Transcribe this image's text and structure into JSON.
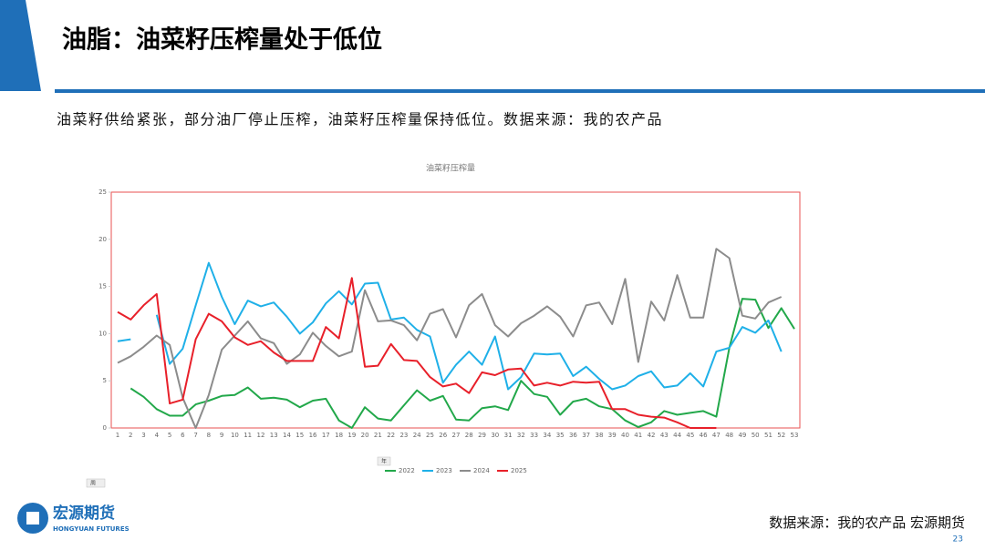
{
  "header": {
    "title": "油脂：油菜籽压榨量处于低位",
    "subtitle": "油菜籽供给紧张，部分油厂停止压榨，油菜籽压榨量保持低位。数据来源：我的农产品"
  },
  "chart_data": {
    "type": "line",
    "title": "油菜籽压榨量",
    "categories": [
      "1",
      "2",
      "3",
      "4",
      "5",
      "6",
      "7",
      "8",
      "9",
      "10",
      "11",
      "12",
      "13",
      "14",
      "15",
      "16",
      "17",
      "18",
      "19",
      "20",
      "21",
      "22",
      "23",
      "24",
      "25",
      "26",
      "27",
      "28",
      "29",
      "30",
      "31",
      "32",
      "33",
      "34",
      "35",
      "36",
      "37",
      "38",
      "39",
      "40",
      "41",
      "42",
      "43",
      "44",
      "45",
      "46",
      "47",
      "48",
      "49",
      "50",
      "51",
      "52",
      "53"
    ],
    "ylim": [
      0,
      25
    ],
    "yticks": [
      0,
      5,
      10,
      15,
      20,
      25
    ],
    "legend_filter": "年",
    "x_filter": "周",
    "series": [
      {
        "name": "2022",
        "color": "#22a84a",
        "values": [
          null,
          4.2,
          3.3,
          2.0,
          1.3,
          1.3,
          2.5,
          2.9,
          3.4,
          3.5,
          4.3,
          3.1,
          3.2,
          3.0,
          2.2,
          2.9,
          3.1,
          0.8,
          0.0,
          2.2,
          1.0,
          0.8,
          2.4,
          4.0,
          2.9,
          3.4,
          0.9,
          0.8,
          2.1,
          2.3,
          1.9,
          5.0,
          3.6,
          3.3,
          1.4,
          2.8,
          3.1,
          2.3,
          2.0,
          0.8,
          0.1,
          0.6,
          1.8,
          1.4,
          1.6,
          1.8,
          1.2,
          8.5,
          13.7,
          13.6,
          10.6,
          12.7,
          10.5
        ]
      },
      {
        "name": "2023",
        "color": "#1fb0e8",
        "values": [
          9.2,
          9.4,
          null,
          12.0,
          6.8,
          8.4,
          13.0,
          17.5,
          13.9,
          11.0,
          13.5,
          12.9,
          13.3,
          11.8,
          10.0,
          11.2,
          13.2,
          14.5,
          13.1,
          15.3,
          15.4,
          11.5,
          11.7,
          10.4,
          9.7,
          4.8,
          6.7,
          8.1,
          6.7,
          9.7,
          4.1,
          5.4,
          7.9,
          7.8,
          7.9,
          5.5,
          6.5,
          5.2,
          4.1,
          4.5,
          5.5,
          6.0,
          4.3,
          4.5,
          5.8,
          4.4,
          8.1,
          8.5,
          10.7,
          10.1,
          11.4,
          8.1,
          null
        ]
      },
      {
        "name": "2024",
        "color": "#8c8c8c",
        "values": [
          6.9,
          7.6,
          8.6,
          9.8,
          8.8,
          3.2,
          0.0,
          3.5,
          8.3,
          9.8,
          11.3,
          9.5,
          9.0,
          6.8,
          7.8,
          10.1,
          8.7,
          7.6,
          8.1,
          14.6,
          11.3,
          11.4,
          10.9,
          9.3,
          12.1,
          12.6,
          9.6,
          13.0,
          14.2,
          10.9,
          9.7,
          11.1,
          11.9,
          12.9,
          11.8,
          9.7,
          13.0,
          13.3,
          11.0,
          15.8,
          7.0,
          13.4,
          11.4,
          16.2,
          11.7,
          11.7,
          19.0,
          18.0,
          11.9,
          11.6,
          13.3,
          13.9,
          null
        ]
      },
      {
        "name": "2025",
        "color": "#e8202a",
        "values": [
          12.3,
          11.5,
          13.0,
          14.2,
          2.6,
          3.0,
          9.4,
          12.1,
          11.3,
          9.6,
          8.8,
          9.2,
          8.0,
          7.1,
          7.1,
          7.1,
          10.7,
          9.5,
          15.9,
          6.5,
          6.6,
          8.9,
          7.2,
          7.1,
          5.4,
          4.4,
          4.7,
          3.7,
          5.9,
          5.6,
          6.2,
          6.3,
          4.5,
          4.8,
          4.5,
          4.9,
          4.8,
          4.9,
          2.0,
          2.0,
          1.4,
          1.2,
          1.1,
          0.6,
          0.0,
          0.0,
          0.0,
          null,
          null,
          null,
          null,
          null,
          null
        ]
      }
    ]
  },
  "footer": {
    "source": "数据来源：我的农产品 宏源期货",
    "page": "23",
    "logo_cn": "宏源期货",
    "logo_en": "HONGYUAN FUTURES"
  }
}
